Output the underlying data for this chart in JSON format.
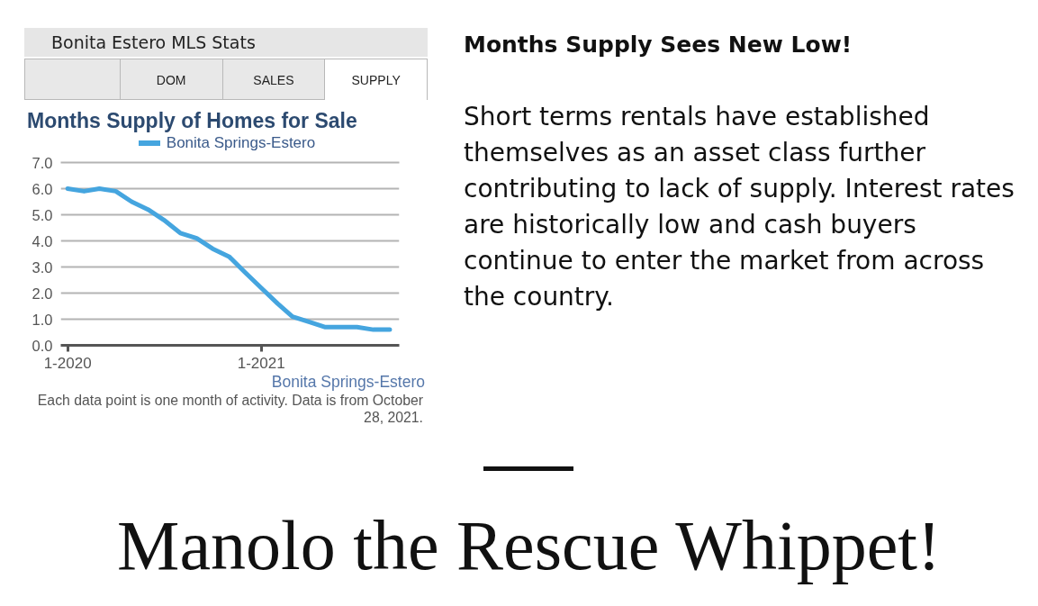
{
  "chart_data": [
    {
      "type": "line",
      "title": "Months Supply of Homes for Sale",
      "x": [
        "2020-01",
        "2020-02",
        "2020-03",
        "2020-04",
        "2020-05",
        "2020-06",
        "2020-07",
        "2020-08",
        "2020-09",
        "2020-10",
        "2020-11",
        "2020-12",
        "2021-01",
        "2021-02",
        "2021-03",
        "2021-04",
        "2021-05",
        "2021-06",
        "2021-07",
        "2021-08",
        "2021-09"
      ],
      "series": [
        {
          "name": "Bonita Springs-Estero",
          "color": "#45a5df",
          "values": [
            6.0,
            5.9,
            6.0,
            5.9,
            5.5,
            5.2,
            4.8,
            4.3,
            4.1,
            3.7,
            3.4,
            2.8,
            2.2,
            1.6,
            1.1,
            0.9,
            0.7,
            0.7,
            0.7,
            0.6,
            0.6
          ]
        }
      ],
      "xlim": [
        "2019-12-19",
        "2021-09-19"
      ],
      "xticks": [
        {
          "value": "2020-01",
          "label": "1-2020"
        },
        {
          "value": "2021-01",
          "label": "1-2021"
        }
      ],
      "ylim": [
        0,
        7
      ],
      "yticks": [
        {
          "value": 0,
          "label": "0.0"
        },
        {
          "value": 1,
          "label": "1.0"
        },
        {
          "value": 2,
          "label": "2.0"
        },
        {
          "value": 3,
          "label": "3.0"
        },
        {
          "value": 4,
          "label": "4.0"
        },
        {
          "value": 5,
          "label": "5.0"
        },
        {
          "value": 6,
          "label": "6.0"
        },
        {
          "value": 7,
          "label": "7.0"
        }
      ],
      "grid": "y",
      "legend": "top",
      "annotations": [
        "Bonita Estero MLS Stats",
        "DOM",
        "SALES",
        "SUPPLY",
        "Bonita Springs-Estero",
        "Each data point is one month of activity. Data is from October 28, 2021."
      ]
    },
    {
      "type": "other",
      "title": "Months Supply Sees New Low!",
      "annotations": [
        "Short terms rentals have established themselves as an asset class further contributing to lack of supply. Interest rates are historically low and cash buyers continue to enter the market from across the country.",
        "Manolo the Rescue Whippet!"
      ]
    }
  ]
}
